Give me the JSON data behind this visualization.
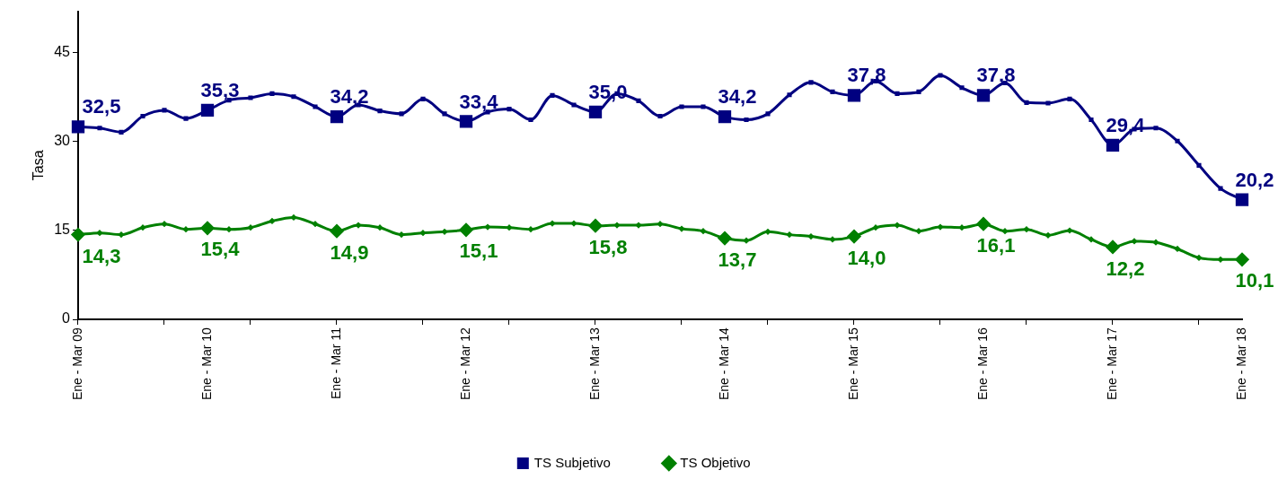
{
  "chart_data": {
    "type": "line",
    "ylabel": "Tasa",
    "categories": [
      "Ene - Mar 09",
      null,
      null,
      null,
      null,
      null,
      "Ene - Mar 10",
      null,
      null,
      null,
      null,
      null,
      "Ene - Mar 11",
      null,
      null,
      null,
      null,
      null,
      "Ene - Mar 12",
      null,
      null,
      null,
      null,
      null,
      "Ene - Mar 13",
      null,
      null,
      null,
      null,
      null,
      "Ene - Mar 14",
      null,
      null,
      null,
      null,
      null,
      "Ene - Mar 15",
      null,
      null,
      null,
      null,
      null,
      "Ene - Mar 16",
      null,
      null,
      null,
      null,
      null,
      "Ene - Mar 17",
      null,
      null,
      null,
      null,
      null,
      "Ene - Mar 18"
    ],
    "series": [
      {
        "name": "TS Subjetivo",
        "color": "#000080",
        "marker": "square",
        "values": [
          32.5,
          32.3,
          31.6,
          34.3,
          35.3,
          33.9,
          35.3,
          37.0,
          37.4,
          38.1,
          37.6,
          35.9,
          34.2,
          36.2,
          35.2,
          34.7,
          37.2,
          34.7,
          33.4,
          35.0,
          35.5,
          33.7,
          37.8,
          36.2,
          35.0,
          38.1,
          36.9,
          34.3,
          35.9,
          35.9,
          34.2,
          33.7,
          34.7,
          37.9,
          40.0,
          38.4,
          37.8,
          40.2,
          38.1,
          38.4,
          41.2,
          39.1,
          37.8,
          39.9,
          36.6,
          36.5,
          37.2,
          33.7,
          29.4,
          32.1,
          32.3,
          30.1,
          26.0,
          22.1,
          20.2
        ],
        "value_labels": [
          "32,5",
          null,
          null,
          null,
          null,
          null,
          "35,3",
          null,
          null,
          null,
          null,
          null,
          "34,2",
          null,
          null,
          null,
          null,
          null,
          "33,4",
          null,
          null,
          null,
          null,
          null,
          "35,0",
          null,
          null,
          null,
          null,
          null,
          "34,2",
          null,
          null,
          null,
          null,
          null,
          "37,8",
          null,
          null,
          null,
          null,
          null,
          "37,8",
          null,
          null,
          null,
          null,
          null,
          "29,4",
          null,
          null,
          null,
          null,
          null,
          "20,2"
        ]
      },
      {
        "name": "TS Objetivo",
        "color": "#008000",
        "marker": "diamond",
        "values": [
          14.3,
          14.6,
          14.3,
          15.5,
          16.1,
          15.2,
          15.4,
          15.2,
          15.5,
          16.6,
          17.2,
          16.1,
          14.9,
          15.9,
          15.5,
          14.3,
          14.6,
          14.8,
          15.1,
          15.6,
          15.5,
          15.2,
          16.2,
          16.2,
          15.8,
          15.9,
          15.9,
          16.1,
          15.3,
          14.9,
          13.7,
          13.3,
          14.8,
          14.3,
          14.0,
          13.5,
          14.0,
          15.5,
          15.9,
          14.9,
          15.6,
          15.5,
          16.1,
          14.9,
          15.2,
          14.2,
          15.0,
          13.5,
          12.2,
          13.2,
          13.0,
          11.9,
          10.4,
          10.1,
          10.1
        ],
        "value_labels": [
          "14,3",
          null,
          null,
          null,
          null,
          null,
          "15,4",
          null,
          null,
          null,
          null,
          null,
          "14,9",
          null,
          null,
          null,
          null,
          null,
          "15,1",
          null,
          null,
          null,
          null,
          null,
          "15,8",
          null,
          null,
          null,
          null,
          null,
          "13,7",
          null,
          null,
          null,
          null,
          null,
          "14,0",
          null,
          null,
          null,
          null,
          null,
          "16,1",
          null,
          null,
          null,
          null,
          null,
          "12,2",
          null,
          null,
          null,
          null,
          null,
          "10,1"
        ]
      }
    ],
    "ylim": [
      0,
      52
    ],
    "yticks": [
      0,
      15,
      30,
      45
    ],
    "grid": false,
    "legend": "bottom",
    "line_style": "solid"
  }
}
